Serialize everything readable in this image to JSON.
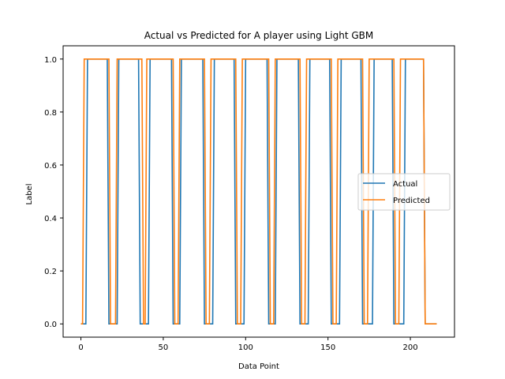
{
  "chart_data": {
    "type": "line",
    "title": "Actual vs Predicted for A player using Light GBM",
    "xlabel": "Data Point",
    "ylabel": "Label",
    "xlim": [
      -10.8,
      226.8
    ],
    "ylim": [
      -0.05,
      1.05
    ],
    "xticks": [
      0,
      50,
      100,
      150,
      200
    ],
    "yticks": [
      0.0,
      0.2,
      0.4,
      0.6,
      0.8,
      1.0
    ],
    "grid": false,
    "legend_position": "center-right",
    "series": [
      {
        "name": "Actual",
        "color": "#1f77b4",
        "x": [
          0,
          3,
          4,
          16,
          17,
          22,
          23,
          35,
          36,
          41,
          42,
          55,
          56,
          60,
          61,
          74,
          75,
          80,
          81,
          93,
          94,
          99,
          100,
          113,
          114,
          118,
          119,
          132,
          133,
          138,
          139,
          151,
          152,
          157,
          158,
          170,
          171,
          177,
          178,
          189,
          190,
          196,
          197,
          208,
          209,
          216
        ],
        "y": [
          0,
          0,
          1,
          1,
          0,
          0,
          1,
          1,
          0,
          0,
          1,
          1,
          0,
          0,
          1,
          1,
          0,
          0,
          1,
          1,
          0,
          0,
          1,
          1,
          0,
          0,
          1,
          1,
          0,
          0,
          1,
          1,
          0,
          0,
          1,
          1,
          0,
          0,
          1,
          1,
          0,
          0,
          1,
          1,
          0,
          0
        ]
      },
      {
        "name": "Predicted",
        "color": "#ff7f0e",
        "x": [
          0,
          1,
          2,
          17,
          18,
          21,
          22,
          37,
          38,
          39,
          40,
          56,
          57,
          59,
          60,
          75,
          76,
          78,
          79,
          94,
          95,
          97,
          98,
          114,
          115,
          117,
          118,
          133,
          134,
          136,
          137,
          152,
          153,
          155,
          156,
          171,
          172,
          174,
          175,
          190,
          191,
          193,
          194,
          208,
          209,
          216
        ],
        "y": [
          0,
          0,
          1,
          1,
          0,
          0,
          1,
          1,
          0,
          0,
          1,
          1,
          0,
          0,
          1,
          1,
          0,
          0,
          1,
          1,
          0,
          0,
          1,
          1,
          0,
          0,
          1,
          1,
          0,
          0,
          1,
          1,
          0,
          0,
          1,
          1,
          0,
          0,
          1,
          1,
          0,
          0,
          1,
          1,
          0,
          0
        ]
      }
    ]
  }
}
